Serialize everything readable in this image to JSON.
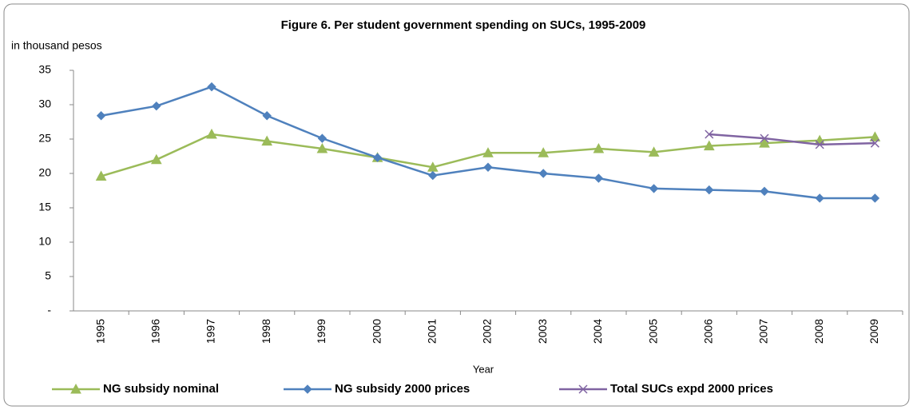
{
  "chart_data": {
    "type": "line",
    "title": "Figure  6.  Per student government spending on SUCs, 1995-2009",
    "y_label": "in thousand pesos",
    "x_label": "Year",
    "categories": [
      "1995",
      "1996",
      "1997",
      "1998",
      "1999",
      "2000",
      "2001",
      "2002",
      "2003",
      "2004",
      "2005",
      "2006",
      "2007",
      "2008",
      "2009"
    ],
    "series": [
      {
        "name": "NG subsidy nominal",
        "color": "#9bbb59",
        "marker": "triangle",
        "values": [
          19.6,
          22.0,
          25.7,
          24.7,
          23.6,
          22.3,
          20.9,
          23.0,
          23.0,
          23.6,
          23.1,
          24.0,
          24.4,
          24.8,
          25.3
        ]
      },
      {
        "name": "NG subsidy 2000 prices",
        "color": "#4f81bd",
        "marker": "diamond",
        "values": [
          28.4,
          29.8,
          32.6,
          28.4,
          25.1,
          22.3,
          19.7,
          20.9,
          20.0,
          19.3,
          17.8,
          17.6,
          17.4,
          16.4,
          16.4
        ]
      },
      {
        "name": "Total SUCs expd 2000 prices",
        "color": "#8064a2",
        "marker": "x",
        "values": [
          null,
          null,
          null,
          null,
          null,
          null,
          null,
          null,
          null,
          null,
          null,
          25.7,
          25.1,
          24.2,
          24.4
        ]
      }
    ],
    "ylim": [
      0,
      35
    ],
    "yticks": [
      {
        "value": 0,
        "label": "-"
      },
      5,
      10,
      15,
      20,
      25,
      30,
      35
    ],
    "grid": false,
    "legend": "bottom"
  }
}
